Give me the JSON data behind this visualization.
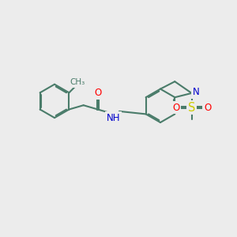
{
  "background_color": "#ececec",
  "bond_color": "#4a7c6a",
  "bond_width": 1.5,
  "atom_colors": {
    "O": "#ff0000",
    "N": "#0000cc",
    "S": "#cccc00",
    "C": "#4a7c6a"
  },
  "font_size": 8.5
}
